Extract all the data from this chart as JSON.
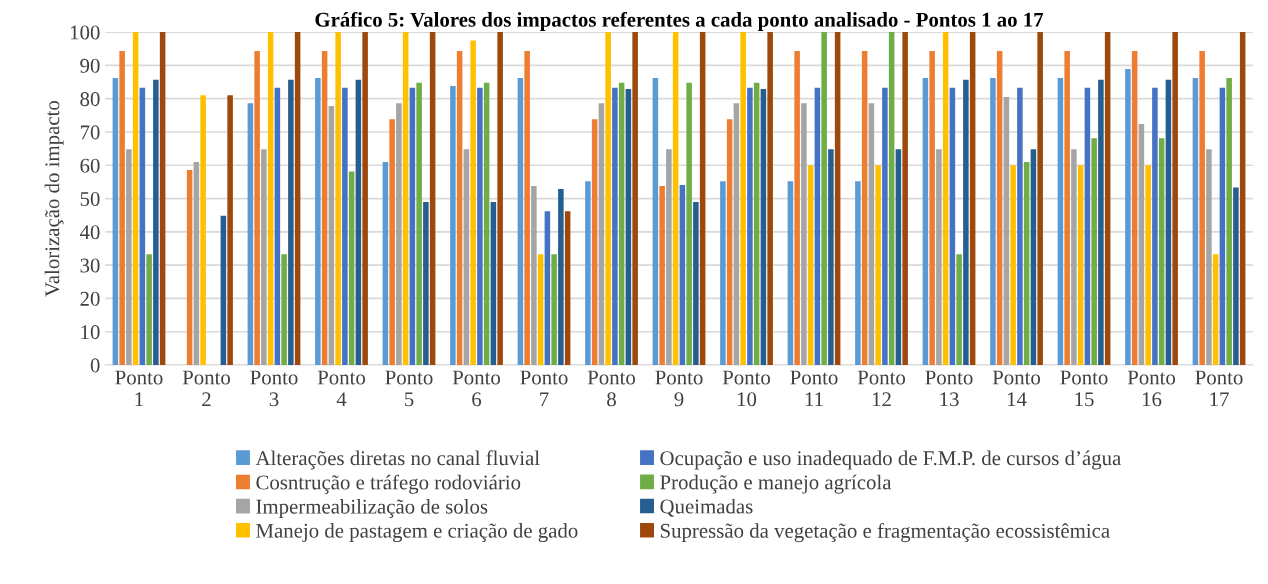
{
  "chart_data": {
    "type": "bar",
    "title": "Gráfico 5: Valores dos impactos referentes a cada ponto analisado - Pontos 1 ao 17",
    "ylabel": "Valorização do impacto",
    "categories": [
      "Ponto\n1",
      "Ponto\n2",
      "Ponto\n3",
      "Ponto\n4",
      "Ponto\n5",
      "Ponto\n6",
      "Ponto\n7",
      "Ponto\n8",
      "Ponto\n9",
      "Ponto\n10",
      "Ponto\n11",
      "Ponto\n12",
      "Ponto\n13",
      "Ponto\n14",
      "Ponto\n15",
      "Ponto\n16",
      "Ponto\n17"
    ],
    "series": [
      {
        "name": "Alterações diretas no canal fluvial",
        "color": "#5b9bd5",
        "values": [
          86.2,
          0,
          78.6,
          86.2,
          61,
          83.8,
          86.2,
          55.2,
          86.2,
          55.2,
          55.2,
          55.2,
          86.2,
          86.2,
          86.2,
          88.9,
          86.2
        ]
      },
      {
        "name": "Cosntrução e tráfego rodoviário",
        "color": "#ed7d31",
        "values": [
          94.3,
          58.6,
          94.3,
          94.3,
          73.8,
          94.3,
          94.3,
          73.8,
          53.8,
          73.8,
          94.3,
          94.3,
          94.3,
          94.3,
          94.3,
          94.3,
          94.3
        ]
      },
      {
        "name": "Impermeabilização de solos",
        "color": "#a5a5a5",
        "values": [
          64.8,
          61,
          64.8,
          77.8,
          78.6,
          64.8,
          53.8,
          78.6,
          64.8,
          78.6,
          78.6,
          78.6,
          64.8,
          80.5,
          64.8,
          72.4,
          64.8
        ]
      },
      {
        "name": "Manejo de pastagem e criação de gado",
        "color": "#ffc000",
        "values": [
          100,
          81,
          100,
          100,
          100,
          97.5,
          33.3,
          100,
          100,
          100,
          60,
          60,
          100,
          60,
          60,
          60,
          33.3
        ]
      },
      {
        "name": "Ocupação e uso inadequado de F.M.P. de cursos d’água",
        "color": "#4472c4",
        "values": [
          83.3,
          0,
          83.3,
          83.3,
          83.3,
          83.3,
          46.2,
          83.3,
          54.1,
          83.3,
          83.3,
          83.3,
          83.3,
          83.3,
          83.3,
          83.3,
          83.3
        ]
      },
      {
        "name": "Produção e manejo agrícola",
        "color": "#70ad47",
        "values": [
          33.3,
          0,
          33.3,
          58.1,
          84.8,
          84.8,
          33.3,
          84.8,
          84.8,
          84.8,
          100,
          100,
          33.3,
          61,
          68.1,
          68.1,
          86.2
        ]
      },
      {
        "name": "Queimadas",
        "color": "#255e91",
        "values": [
          85.7,
          44.8,
          85.7,
          85.7,
          49,
          49,
          52.9,
          82.9,
          49,
          82.9,
          64.8,
          64.8,
          85.7,
          64.8,
          85.7,
          85.7,
          53.3
        ]
      },
      {
        "name": "Supressão da vegetação e fragmentação ecossistêmica",
        "color": "#9e480e",
        "values": [
          100,
          81,
          100,
          100,
          100,
          100,
          46.2,
          100,
          100,
          100,
          100,
          100,
          100,
          100,
          100,
          100,
          100
        ]
      }
    ],
    "ylim": [
      0,
      100
    ],
    "yticks": [
      0,
      10,
      20,
      30,
      40,
      50,
      60,
      70,
      80,
      90,
      100
    ],
    "grid": "y",
    "legend": "bottom"
  }
}
